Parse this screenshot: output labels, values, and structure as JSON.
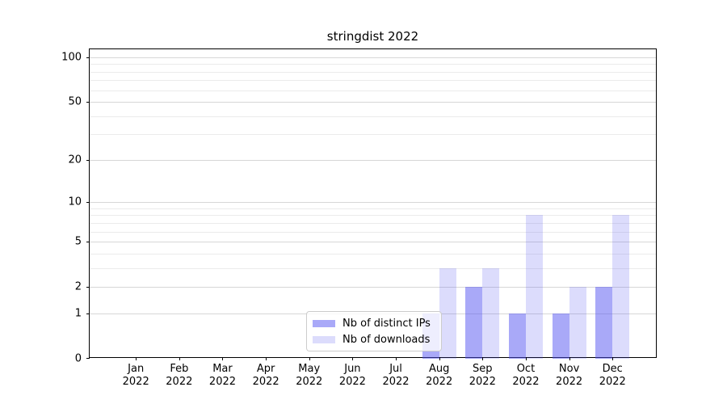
{
  "chart_data": {
    "type": "bar",
    "title": "stringdist 2022",
    "months": [
      "Jan",
      "Feb",
      "Mar",
      "Apr",
      "May",
      "Jun",
      "Jul",
      "Aug",
      "Sep",
      "Oct",
      "Nov",
      "Dec"
    ],
    "year_label": "2022",
    "categories": [
      "Jan 2022",
      "Feb 2022",
      "Mar 2022",
      "Apr 2022",
      "May 2022",
      "Jun 2022",
      "Jul 2022",
      "Aug 2022",
      "Sep 2022",
      "Oct 2022",
      "Nov 2022",
      "Dec 2022"
    ],
    "series": [
      {
        "name": "Nb of distinct IPs",
        "color": "rgba(80,80,240,0.49)",
        "values": [
          0,
          0,
          0,
          0,
          0,
          0,
          0,
          1,
          2,
          1,
          1,
          2
        ]
      },
      {
        "name": "Nb of downloads",
        "color": "rgba(80,80,240,0.20)",
        "values": [
          0,
          0,
          0,
          0,
          0,
          0,
          0,
          3,
          3,
          8,
          2,
          8
        ]
      }
    ],
    "y_scale": "log1p",
    "y_major_ticks": [
      0,
      1,
      2,
      5,
      10,
      20,
      50,
      100
    ],
    "y_minor_ticks": [
      3,
      4,
      6,
      7,
      8,
      9,
      30,
      40,
      60,
      70,
      80,
      90
    ],
    "ylim": [
      0,
      113
    ],
    "xlabel": "",
    "ylabel": "",
    "grid": true,
    "legend_position": "lower center",
    "colors": {
      "major_grid": "#d7d7d7",
      "minor_grid": "#ebebeb",
      "spine": "#000000",
      "background": "#ffffff",
      "text": "#000000"
    }
  }
}
